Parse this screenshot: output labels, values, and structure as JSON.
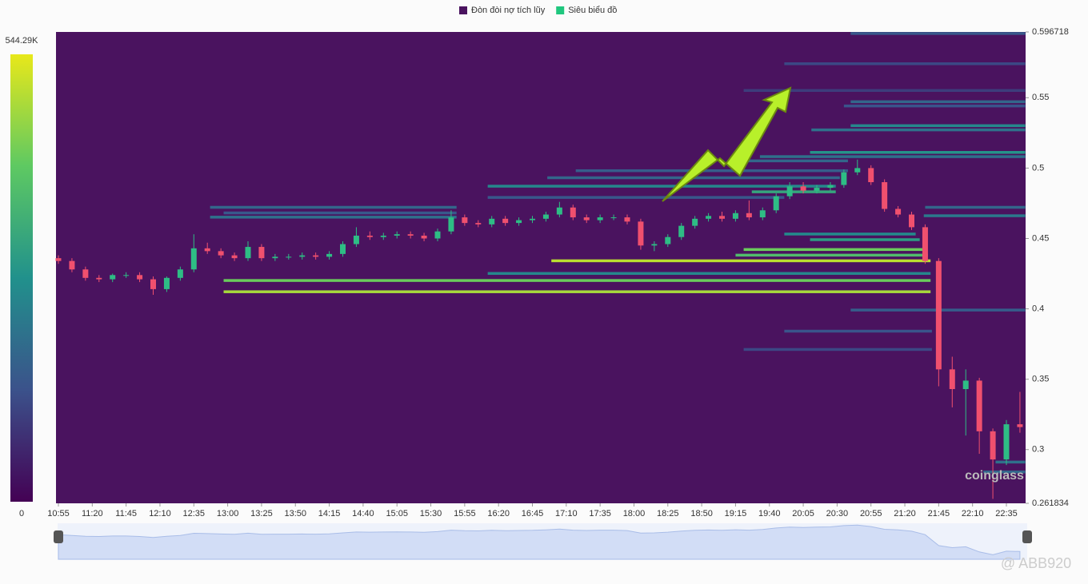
{
  "chart_data": {
    "type": "candlestick",
    "legend": [
      {
        "name": "Đòn đòi nợ tích lũy",
        "color": "#4a135f"
      },
      {
        "name": "Siêu biểu đồ",
        "color": "#1fc77e"
      }
    ],
    "up_color": "#2ebd85",
    "down_color": "#f0506e",
    "x": [
      "10:55",
      "11:05",
      "11:15",
      "11:25",
      "11:35",
      "11:45",
      "11:55",
      "12:05",
      "12:15",
      "12:25",
      "12:35",
      "12:45",
      "12:55",
      "13:05",
      "13:15",
      "13:25",
      "13:35",
      "13:45",
      "13:55",
      "14:05",
      "14:15",
      "14:25",
      "14:35",
      "14:45",
      "14:55",
      "15:05",
      "15:15",
      "15:25",
      "15:35",
      "15:45",
      "15:55",
      "16:05",
      "16:15",
      "16:25",
      "16:35",
      "16:45",
      "16:55",
      "17:05",
      "17:15",
      "17:25",
      "17:35",
      "17:45",
      "17:55",
      "18:05",
      "18:15",
      "18:25",
      "18:35",
      "18:45",
      "18:55",
      "19:05",
      "19:15",
      "19:25",
      "19:35",
      "19:45",
      "19:55",
      "20:05",
      "20:15",
      "20:25",
      "20:35",
      "20:45",
      "20:55",
      "21:05",
      "21:15",
      "21:25",
      "21:35",
      "21:45",
      "21:55",
      "22:05",
      "22:15",
      "22:25",
      "22:35",
      "22:45"
    ],
    "open": [
      0.436,
      0.434,
      0.428,
      0.422,
      0.421,
      0.424,
      0.424,
      0.421,
      0.414,
      0.422,
      0.428,
      0.443,
      0.441,
      0.438,
      0.436,
      0.444,
      0.436,
      0.437,
      0.437,
      0.438,
      0.437,
      0.439,
      0.446,
      0.452,
      0.451,
      0.452,
      0.453,
      0.452,
      0.45,
      0.455,
      0.465,
      0.461,
      0.46,
      0.464,
      0.461,
      0.463,
      0.464,
      0.467,
      0.472,
      0.465,
      0.463,
      0.465,
      0.465,
      0.462,
      0.445,
      0.446,
      0.451,
      0.459,
      0.464,
      0.466,
      0.464,
      0.468,
      0.465,
      0.47,
      0.48,
      0.487,
      0.484,
      0.486,
      0.488,
      0.497,
      0.5,
      0.49,
      0.471,
      0.467,
      0.458,
      0.434,
      0.357,
      0.343,
      0.349,
      0.313,
      0.293,
      0.318
    ],
    "high": [
      0.438,
      0.436,
      0.43,
      0.424,
      0.425,
      0.426,
      0.426,
      0.423,
      0.423,
      0.43,
      0.453,
      0.447,
      0.443,
      0.44,
      0.448,
      0.446,
      0.439,
      0.439,
      0.44,
      0.44,
      0.441,
      0.448,
      0.458,
      0.455,
      0.454,
      0.455,
      0.455,
      0.454,
      0.457,
      0.47,
      0.467,
      0.463,
      0.466,
      0.466,
      0.465,
      0.466,
      0.469,
      0.476,
      0.474,
      0.467,
      0.467,
      0.467,
      0.467,
      0.464,
      0.448,
      0.453,
      0.461,
      0.466,
      0.468,
      0.469,
      0.47,
      0.477,
      0.472,
      0.482,
      0.49,
      0.49,
      0.488,
      0.49,
      0.499,
      0.506,
      0.502,
      0.492,
      0.473,
      0.469,
      0.46,
      0.436,
      0.366,
      0.357,
      0.351,
      0.315,
      0.321,
      0.341
    ],
    "low": [
      0.432,
      0.426,
      0.42,
      0.419,
      0.419,
      0.422,
      0.419,
      0.41,
      0.412,
      0.42,
      0.426,
      0.439,
      0.436,
      0.434,
      0.434,
      0.434,
      0.434,
      0.435,
      0.435,
      0.435,
      0.435,
      0.437,
      0.444,
      0.449,
      0.449,
      0.45,
      0.45,
      0.448,
      0.448,
      0.453,
      0.459,
      0.458,
      0.458,
      0.459,
      0.459,
      0.461,
      0.462,
      0.465,
      0.463,
      0.461,
      0.461,
      0.463,
      0.46,
      0.442,
      0.441,
      0.444,
      0.449,
      0.457,
      0.462,
      0.462,
      0.462,
      0.463,
      0.463,
      0.468,
      0.478,
      0.482,
      0.482,
      0.484,
      0.486,
      0.495,
      0.488,
      0.469,
      0.465,
      0.456,
      0.432,
      0.345,
      0.33,
      0.31,
      0.297,
      0.265,
      0.289,
      0.312
    ],
    "close": [
      0.434,
      0.428,
      0.422,
      0.421,
      0.424,
      0.424,
      0.421,
      0.414,
      0.422,
      0.428,
      0.443,
      0.441,
      0.438,
      0.436,
      0.444,
      0.436,
      0.437,
      0.437,
      0.438,
      0.437,
      0.439,
      0.446,
      0.452,
      0.451,
      0.452,
      0.453,
      0.452,
      0.45,
      0.455,
      0.465,
      0.461,
      0.46,
      0.464,
      0.461,
      0.463,
      0.464,
      0.467,
      0.472,
      0.465,
      0.463,
      0.465,
      0.465,
      0.462,
      0.445,
      0.446,
      0.451,
      0.459,
      0.464,
      0.466,
      0.464,
      0.468,
      0.465,
      0.47,
      0.48,
      0.487,
      0.484,
      0.486,
      0.488,
      0.497,
      0.5,
      0.49,
      0.471,
      0.467,
      0.458,
      0.434,
      0.357,
      0.343,
      0.349,
      0.313,
      0.293,
      0.318,
      0.316
    ],
    "xticks": [
      "10:55",
      "11:20",
      "11:45",
      "12:10",
      "12:35",
      "13:00",
      "13:25",
      "13:50",
      "14:15",
      "14:40",
      "15:05",
      "15:30",
      "15:55",
      "16:20",
      "16:45",
      "17:10",
      "17:35",
      "18:00",
      "18:25",
      "18:50",
      "19:15",
      "19:40",
      "20:05",
      "20:30",
      "20:55",
      "21:20",
      "21:45",
      "22:10",
      "22:35"
    ],
    "ylim": [
      0.261834,
      0.596718
    ],
    "yticks": [
      0.261834,
      0.3,
      0.35,
      0.4,
      0.45,
      0.5,
      0.55,
      0.596718
    ],
    "colorbar": {
      "lim": [
        0,
        {
          "value": 544290,
          "label": "544.29K"
        }
      ],
      "colors": [
        "#440154",
        "#3b528b",
        "#21918c",
        "#5ec962",
        "#e8e81a"
      ]
    },
    "levels": [
      {
        "price": 0.5955,
        "from": "20:40",
        "to": "22:49",
        "value": 150000
      },
      {
        "price": 0.574,
        "from": "19:51",
        "to": "22:49",
        "value": 120000
      },
      {
        "price": 0.555,
        "from": "19:21",
        "to": "22:49",
        "value": 100000
      },
      {
        "price": 0.547,
        "from": "20:40",
        "to": "22:49",
        "value": 180000
      },
      {
        "price": 0.544,
        "from": "20:35",
        "to": "22:49",
        "value": 140000
      },
      {
        "price": 0.53,
        "from": "20:40",
        "to": "22:49",
        "value": 250000
      },
      {
        "price": 0.527,
        "from": "20:11",
        "to": "22:49",
        "value": 200000
      },
      {
        "price": 0.511,
        "from": "20:10",
        "to": "22:49",
        "value": 280000
      },
      {
        "price": 0.508,
        "from": "19:33",
        "to": "22:49",
        "value": 200000
      },
      {
        "price": 0.505,
        "from": "19:21",
        "to": "20:38",
        "value": 180000
      },
      {
        "price": 0.498,
        "from": "17:17",
        "to": "20:38",
        "value": 160000
      },
      {
        "price": 0.493,
        "from": "16:56",
        "to": "20:32",
        "value": 180000
      },
      {
        "price": 0.487,
        "from": "16:12",
        "to": "20:29",
        "value": 250000
      },
      {
        "price": 0.483,
        "from": "19:27",
        "to": "20:29",
        "value": 320000
      },
      {
        "price": 0.479,
        "from": "16:12",
        "to": "19:51",
        "value": 150000
      },
      {
        "price": 0.472,
        "from": "12:47",
        "to": "15:49",
        "value": 180000
      },
      {
        "price": 0.468,
        "from": "12:57",
        "to": "15:49",
        "value": 150000
      },
      {
        "price": 0.465,
        "from": "12:47",
        "to": "15:49",
        "value": 200000
      },
      {
        "price": 0.472,
        "from": "21:35",
        "to": "22:49",
        "value": 180000
      },
      {
        "price": 0.466,
        "from": "21:34",
        "to": "22:49",
        "value": 220000
      },
      {
        "price": 0.453,
        "from": "19:51",
        "to": "21:28",
        "value": 260000
      },
      {
        "price": 0.449,
        "from": "20:10",
        "to": "21:31",
        "value": 300000
      },
      {
        "price": 0.442,
        "from": "19:21",
        "to": "21:34",
        "value": 420000
      },
      {
        "price": 0.438,
        "from": "19:15",
        "to": "21:37",
        "value": 380000
      },
      {
        "price": 0.434,
        "from": "16:59",
        "to": "21:39",
        "value": 500000
      },
      {
        "price": 0.425,
        "from": "16:12",
        "to": "21:39",
        "value": 250000
      },
      {
        "price": 0.42,
        "from": "12:57",
        "to": "21:39",
        "value": 420000
      },
      {
        "price": 0.412,
        "from": "12:57",
        "to": "21:39",
        "value": 480000
      },
      {
        "price": 0.399,
        "from": "20:40",
        "to": "22:49",
        "value": 160000
      },
      {
        "price": 0.384,
        "from": "19:51",
        "to": "21:40",
        "value": 140000
      },
      {
        "price": 0.371,
        "from": "19:21",
        "to": "21:40",
        "value": 120000
      },
      {
        "price": 0.291,
        "from": "22:27",
        "to": "22:49",
        "value": 200000
      },
      {
        "price": 0.284,
        "from": "22:18",
        "to": "22:49",
        "value": 180000
      }
    ],
    "watermark": "coinglass",
    "credit": "@ ABB920"
  }
}
